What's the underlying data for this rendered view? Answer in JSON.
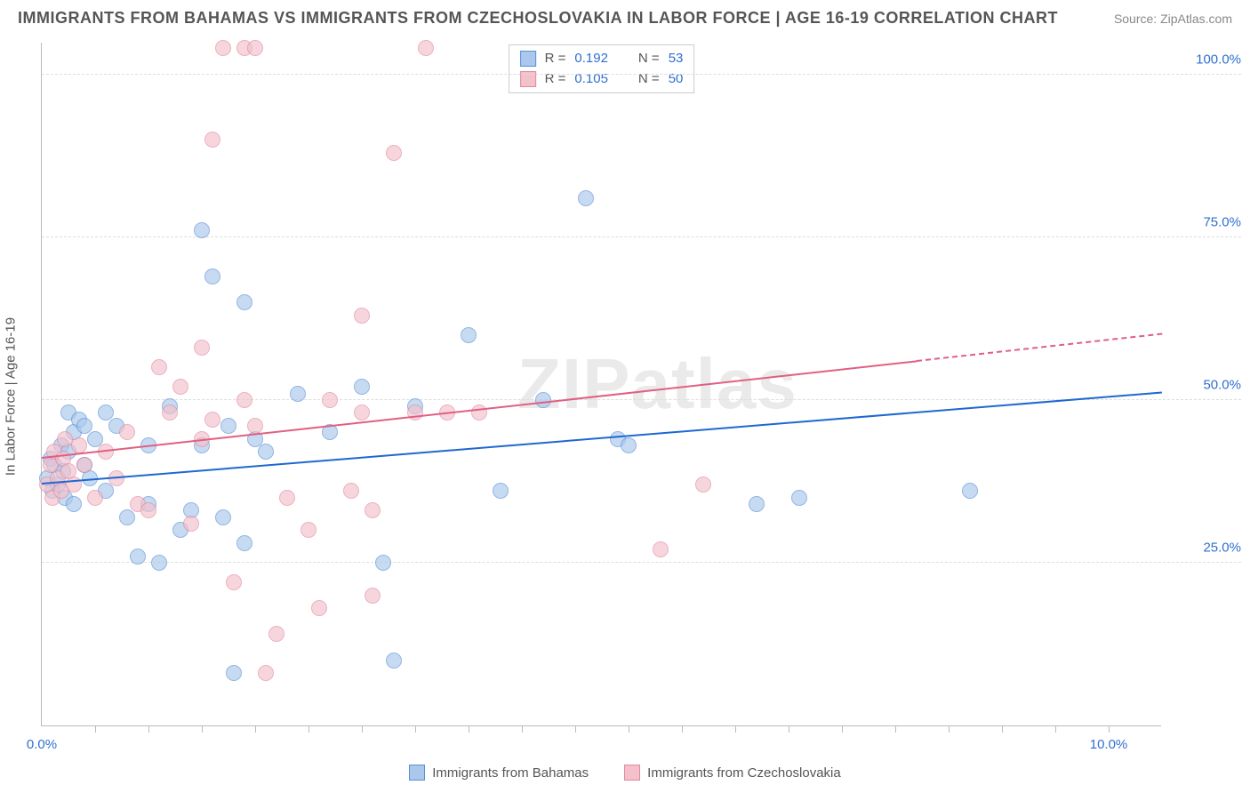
{
  "header": {
    "title": "IMMIGRANTS FROM BAHAMAS VS IMMIGRANTS FROM CZECHOSLOVAKIA IN LABOR FORCE | AGE 16-19 CORRELATION CHART",
    "source": "Source: ZipAtlas.com"
  },
  "watermark": {
    "strong": "ZIP",
    "light": "atlas"
  },
  "chart": {
    "type": "scatter",
    "ylabel": "In Labor Force | Age 16-19",
    "xlim": [
      0,
      10.5
    ],
    "ylim": [
      0,
      105
    ],
    "background_color": "#ffffff",
    "grid_color": "#dddddd",
    "axis_color": "#bbbbbb",
    "marker_radius": 9,
    "marker_opacity": 0.65,
    "yticks": [
      {
        "v": 25,
        "label": "25.0%"
      },
      {
        "v": 50,
        "label": "50.0%"
      },
      {
        "v": 75,
        "label": "75.0%"
      },
      {
        "v": 100,
        "label": "100.0%"
      }
    ],
    "xticks_minor": [
      0.5,
      1,
      1.5,
      2,
      2.5,
      3,
      3.5,
      4,
      4.5,
      5,
      5.5,
      6,
      6.5,
      7,
      7.5,
      8,
      8.5,
      9,
      9.5,
      10
    ],
    "xticks_labeled": [
      {
        "v": 0,
        "label": "0.0%"
      },
      {
        "v": 10,
        "label": "10.0%"
      }
    ],
    "xtick_label_color": "#2f6fd0",
    "ytick_label_color": "#2f6fd0",
    "series": [
      {
        "key": "bahamas",
        "name": "Immigrants from Bahamas",
        "fill": "#a9c8ec",
        "stroke": "#5a8fd6",
        "trend_color": "#1f68d1",
        "R": "0.192",
        "N": "53",
        "trend": {
          "x0": 0,
          "y0": 37,
          "x1": 10.5,
          "y1": 51,
          "solid_until_x": 10.5
        },
        "points": [
          [
            0.05,
            38
          ],
          [
            0.08,
            41
          ],
          [
            0.1,
            36
          ],
          [
            0.12,
            40
          ],
          [
            0.15,
            37
          ],
          [
            0.18,
            43
          ],
          [
            0.2,
            39
          ],
          [
            0.22,
            35
          ],
          [
            0.25,
            42
          ],
          [
            0.25,
            48
          ],
          [
            0.3,
            45
          ],
          [
            0.3,
            34
          ],
          [
            0.35,
            47
          ],
          [
            0.4,
            46
          ],
          [
            0.4,
            40
          ],
          [
            0.45,
            38
          ],
          [
            0.5,
            44
          ],
          [
            0.6,
            48
          ],
          [
            0.6,
            36
          ],
          [
            0.7,
            46
          ],
          [
            0.8,
            32
          ],
          [
            0.9,
            26
          ],
          [
            1.0,
            34
          ],
          [
            1.0,
            43
          ],
          [
            1.1,
            25
          ],
          [
            1.2,
            49
          ],
          [
            1.3,
            30
          ],
          [
            1.4,
            33
          ],
          [
            1.5,
            76
          ],
          [
            1.5,
            43
          ],
          [
            1.6,
            69
          ],
          [
            1.7,
            32
          ],
          [
            1.75,
            46
          ],
          [
            1.8,
            8
          ],
          [
            1.9,
            65
          ],
          [
            1.9,
            28
          ],
          [
            2.0,
            44
          ],
          [
            2.4,
            51
          ],
          [
            2.7,
            45
          ],
          [
            3.0,
            52
          ],
          [
            3.2,
            25
          ],
          [
            3.3,
            10
          ],
          [
            3.5,
            49
          ],
          [
            4.0,
            60
          ],
          [
            4.3,
            36
          ],
          [
            4.7,
            50
          ],
          [
            5.1,
            81
          ],
          [
            5.4,
            44
          ],
          [
            5.5,
            43
          ],
          [
            6.7,
            34
          ],
          [
            7.1,
            35
          ],
          [
            8.7,
            36
          ],
          [
            2.1,
            42
          ]
        ]
      },
      {
        "key": "czech",
        "name": "Immigrants from Czechoslovakia",
        "fill": "#f4c0cb",
        "stroke": "#e08aa0",
        "trend_color": "#e15f82",
        "R": "0.105",
        "N": "50",
        "trend": {
          "x0": 0,
          "y0": 41,
          "x1": 10.5,
          "y1": 60,
          "solid_until_x": 8.2
        },
        "points": [
          [
            0.05,
            37
          ],
          [
            0.08,
            40
          ],
          [
            0.1,
            35
          ],
          [
            0.12,
            42
          ],
          [
            0.15,
            38
          ],
          [
            0.18,
            36
          ],
          [
            0.2,
            41
          ],
          [
            0.22,
            44
          ],
          [
            0.25,
            39
          ],
          [
            0.3,
            37
          ],
          [
            0.35,
            43
          ],
          [
            0.4,
            40
          ],
          [
            0.5,
            35
          ],
          [
            0.6,
            42
          ],
          [
            0.7,
            38
          ],
          [
            0.8,
            45
          ],
          [
            0.9,
            34
          ],
          [
            1.0,
            33
          ],
          [
            1.1,
            55
          ],
          [
            1.2,
            48
          ],
          [
            1.3,
            52
          ],
          [
            1.4,
            31
          ],
          [
            1.5,
            58
          ],
          [
            1.5,
            44
          ],
          [
            1.6,
            47
          ],
          [
            1.6,
            90
          ],
          [
            1.7,
            104
          ],
          [
            1.8,
            22
          ],
          [
            1.9,
            50
          ],
          [
            1.9,
            104
          ],
          [
            2.0,
            104
          ],
          [
            2.0,
            46
          ],
          [
            2.1,
            8
          ],
          [
            2.2,
            14
          ],
          [
            2.3,
            35
          ],
          [
            2.5,
            30
          ],
          [
            2.6,
            18
          ],
          [
            2.7,
            50
          ],
          [
            2.9,
            36
          ],
          [
            3.0,
            63
          ],
          [
            3.0,
            48
          ],
          [
            3.1,
            33
          ],
          [
            3.1,
            20
          ],
          [
            3.3,
            88
          ],
          [
            3.5,
            48
          ],
          [
            3.6,
            104
          ],
          [
            3.8,
            48
          ],
          [
            4.1,
            48
          ],
          [
            5.8,
            27
          ],
          [
            6.2,
            37
          ]
        ]
      }
    ],
    "legend_top": {
      "label_R": "R  =",
      "label_N": "N  =",
      "value_color": "#2f6fd0"
    },
    "legend_bottom_items": [
      {
        "series": "bahamas"
      },
      {
        "series": "czech"
      }
    ]
  }
}
